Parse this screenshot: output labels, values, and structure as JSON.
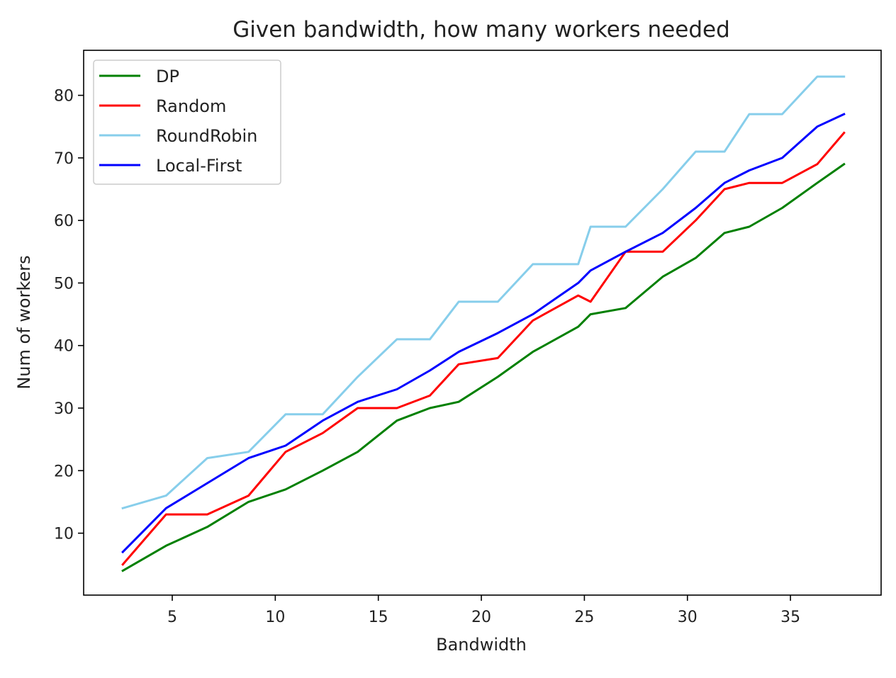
{
  "chart_data": {
    "type": "line",
    "title": "Given bandwidth, how many workers needed",
    "xlabel": "Bandwidth",
    "ylabel": "Num of workers",
    "xlim": [
      0.7,
      39.4
    ],
    "ylim": [
      0.1,
      87.2
    ],
    "xticks": [
      5,
      10,
      15,
      20,
      25,
      30,
      35
    ],
    "yticks": [
      10,
      20,
      30,
      40,
      50,
      60,
      70,
      80
    ],
    "grid": false,
    "legend_position": "upper left",
    "x": [
      2.6,
      4.7,
      6.7,
      8.7,
      10.5,
      12.3,
      14.0,
      15.9,
      17.5,
      18.9,
      20.8,
      22.5,
      24.7,
      25.3,
      27.0,
      28.8,
      30.4,
      31.8,
      33.0,
      34.6,
      36.3,
      37.6
    ],
    "series": [
      {
        "name": "DP",
        "color": "#008000",
        "y": [
          4,
          8,
          11,
          15,
          17,
          20,
          23,
          28,
          30,
          31,
          35,
          39,
          43,
          45,
          46,
          51,
          54,
          58,
          59,
          62,
          66,
          69
        ]
      },
      {
        "name": "Random",
        "color": "#ff0000",
        "x": [
          2.6,
          4.7,
          6.7,
          8.7,
          10.5,
          12.3,
          14.0,
          15.9,
          17.5,
          18.9,
          20.8,
          22.5,
          24.7,
          25.3,
          27.0,
          28.8,
          30.4,
          31.8,
          33.0,
          34.6,
          36.3,
          37.6
        ],
        "y": [
          5,
          13,
          13,
          16,
          23,
          26,
          30,
          30,
          32,
          37,
          38,
          44,
          48,
          47,
          55,
          55,
          60,
          65,
          66,
          66,
          69,
          74
        ]
      },
      {
        "name": "RoundRobin",
        "color": "#87ceeb",
        "x": [
          2.6,
          4.7,
          6.7,
          8.7,
          10.5,
          12.3,
          14.0,
          15.9,
          17.5,
          18.9,
          20.8,
          22.5,
          24.7,
          25.3,
          27.0,
          28.8,
          30.4,
          31.8,
          33.0,
          34.6,
          36.3,
          37.6
        ],
        "y": [
          14,
          16,
          22,
          23,
          29,
          29,
          35,
          41,
          41,
          47,
          47,
          53,
          53,
          59,
          59,
          65,
          71,
          71,
          77,
          77,
          83,
          83
        ]
      },
      {
        "name": "Local-First",
        "color": "#0000ff",
        "x": [
          2.6,
          4.7,
          6.7,
          8.7,
          10.5,
          12.3,
          14.0,
          15.9,
          17.5,
          18.9,
          20.8,
          22.5,
          24.7,
          25.3,
          27.0,
          28.8,
          30.4,
          31.8,
          33.0,
          34.6,
          36.3,
          37.6
        ],
        "y": [
          7,
          14,
          18,
          22,
          24,
          28,
          31,
          33,
          36,
          39,
          42,
          45,
          50,
          52,
          55,
          58,
          62,
          66,
          68,
          70,
          75,
          77
        ]
      }
    ]
  }
}
